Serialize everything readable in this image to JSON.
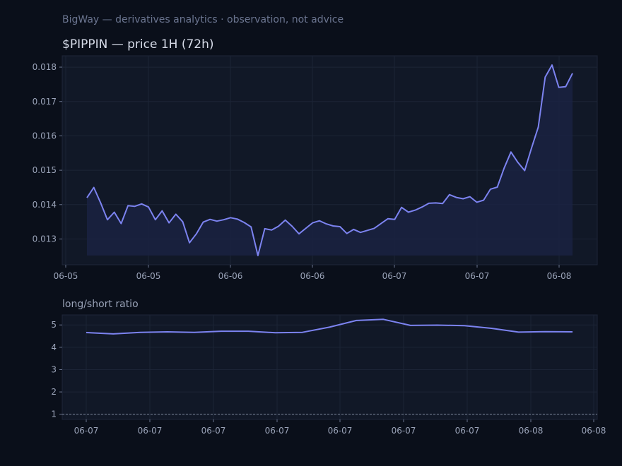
{
  "header": {
    "note": "BigWay — derivatives analytics · observation, not advice",
    "title": "$PIPPIN — price 1H (72h)",
    "subtitle": "long/short ratio"
  },
  "colors": {
    "background": "#0a0f1a",
    "panel": "#111827",
    "line": "#7c83f0",
    "grid": "#1c2436",
    "text": "#9aa3b8"
  },
  "chart_data": [
    {
      "type": "area",
      "title": "$PIPPIN — price 1H (72h)",
      "x_tick_labels": [
        "06-05",
        "06-05",
        "06-06",
        "06-06",
        "06-07",
        "06-07",
        "06-08"
      ],
      "y_ticks": [
        "0.013",
        "0.014",
        "0.015",
        "0.016",
        "0.017",
        "0.018"
      ],
      "ylim": [
        0.01225,
        0.01833
      ],
      "grid": true,
      "series": [
        {
          "values": [
            0.0142,
            0.0145,
            0.01405,
            0.01356,
            0.01378,
            0.01345,
            0.01397,
            0.01395,
            0.01402,
            0.01393,
            0.01356,
            0.01382,
            0.01347,
            0.01372,
            0.0135,
            0.01289,
            0.01315,
            0.01349,
            0.01357,
            0.01352,
            0.01356,
            0.01362,
            0.01358,
            0.01348,
            0.01335,
            0.01252,
            0.0133,
            0.01326,
            0.01337,
            0.01355,
            0.01337,
            0.01315,
            0.01331,
            0.01347,
            0.01353,
            0.01344,
            0.01338,
            0.01336,
            0.01316,
            0.01328,
            0.01319,
            0.01325,
            0.01331,
            0.01345,
            0.01359,
            0.01357,
            0.01392,
            0.01378,
            0.01384,
            0.01393,
            0.01404,
            0.01405,
            0.01403,
            0.01429,
            0.01421,
            0.01417,
            0.01423,
            0.01407,
            0.01413,
            0.01445,
            0.01451,
            0.01506,
            0.01553,
            0.01523,
            0.01499,
            0.01564,
            0.01626,
            0.01771,
            0.01806,
            0.01741,
            0.01743,
            0.01782
          ]
        }
      ]
    },
    {
      "type": "line",
      "title": "long/short ratio",
      "x_tick_labels": [
        "06-07",
        "06-07",
        "06-07",
        "06-07",
        "06-07",
        "06-07",
        "06-07",
        "06-08",
        "06-08"
      ],
      "y_ticks": [
        "1",
        "2",
        "3",
        "4",
        "5"
      ],
      "ylim": [
        0.77,
        5.45
      ],
      "grid": true,
      "reference_line": 1,
      "series": [
        {
          "values": [
            4.66,
            4.6,
            4.67,
            4.69,
            4.67,
            4.72,
            4.72,
            4.65,
            4.67,
            4.9,
            5.2,
            5.25,
            4.98,
            4.99,
            4.97,
            4.85,
            4.68,
            4.7,
            4.69
          ]
        }
      ]
    }
  ]
}
